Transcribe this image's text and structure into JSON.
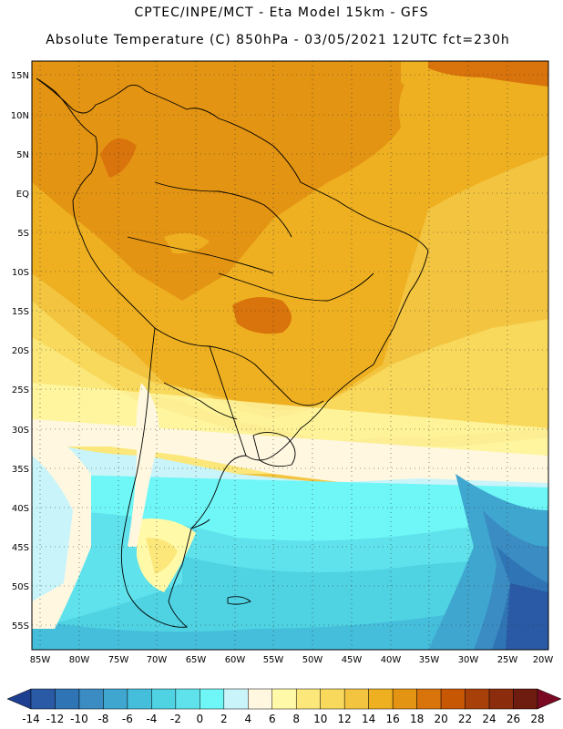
{
  "header": {
    "line1": "CPTEC/INPE/MCT -  Eta Model 15km - GFS",
    "line2": "Absolute Temperature (C) 850hPa - 03/05/2021 12UTC fct=230h"
  },
  "map": {
    "lat_range": [
      -58,
      17
    ],
    "lon_range": [
      -86,
      -20
    ],
    "lat_labels": [
      "15N",
      "10N",
      "5N",
      "EQ",
      "5S",
      "10S",
      "15S",
      "20S",
      "25S",
      "30S",
      "35S",
      "40S",
      "45S",
      "50S",
      "55S"
    ],
    "lon_labels": [
      "85W",
      "80W",
      "75W",
      "70W",
      "65W",
      "60W",
      "55W",
      "50W",
      "45W",
      "40W",
      "35W",
      "30W",
      "25W",
      "20W"
    ]
  },
  "colorbar": {
    "labels": [
      "-14",
      "-12",
      "-10",
      "-8",
      "-6",
      "-4",
      "-2",
      "0",
      "2",
      "4",
      "6",
      "8",
      "10",
      "12",
      "14",
      "16",
      "18",
      "20",
      "22",
      "24",
      "26",
      "28"
    ],
    "colors": [
      "#1e3f8f",
      "#2a5aa6",
      "#2f74b5",
      "#3a8cc2",
      "#3fa6cf",
      "#45bedb",
      "#4fd3e3",
      "#5fe2ec",
      "#6ff6f6",
      "#c8f4fa",
      "#fff7e0",
      "#fff9a8",
      "#fbe77a",
      "#f8d95c",
      "#f3c440",
      "#eeb021",
      "#e49413",
      "#d9730b",
      "#c85704",
      "#a8400a",
      "#8b2c0c",
      "#6e1c10",
      "#7a0a24"
    ]
  }
}
